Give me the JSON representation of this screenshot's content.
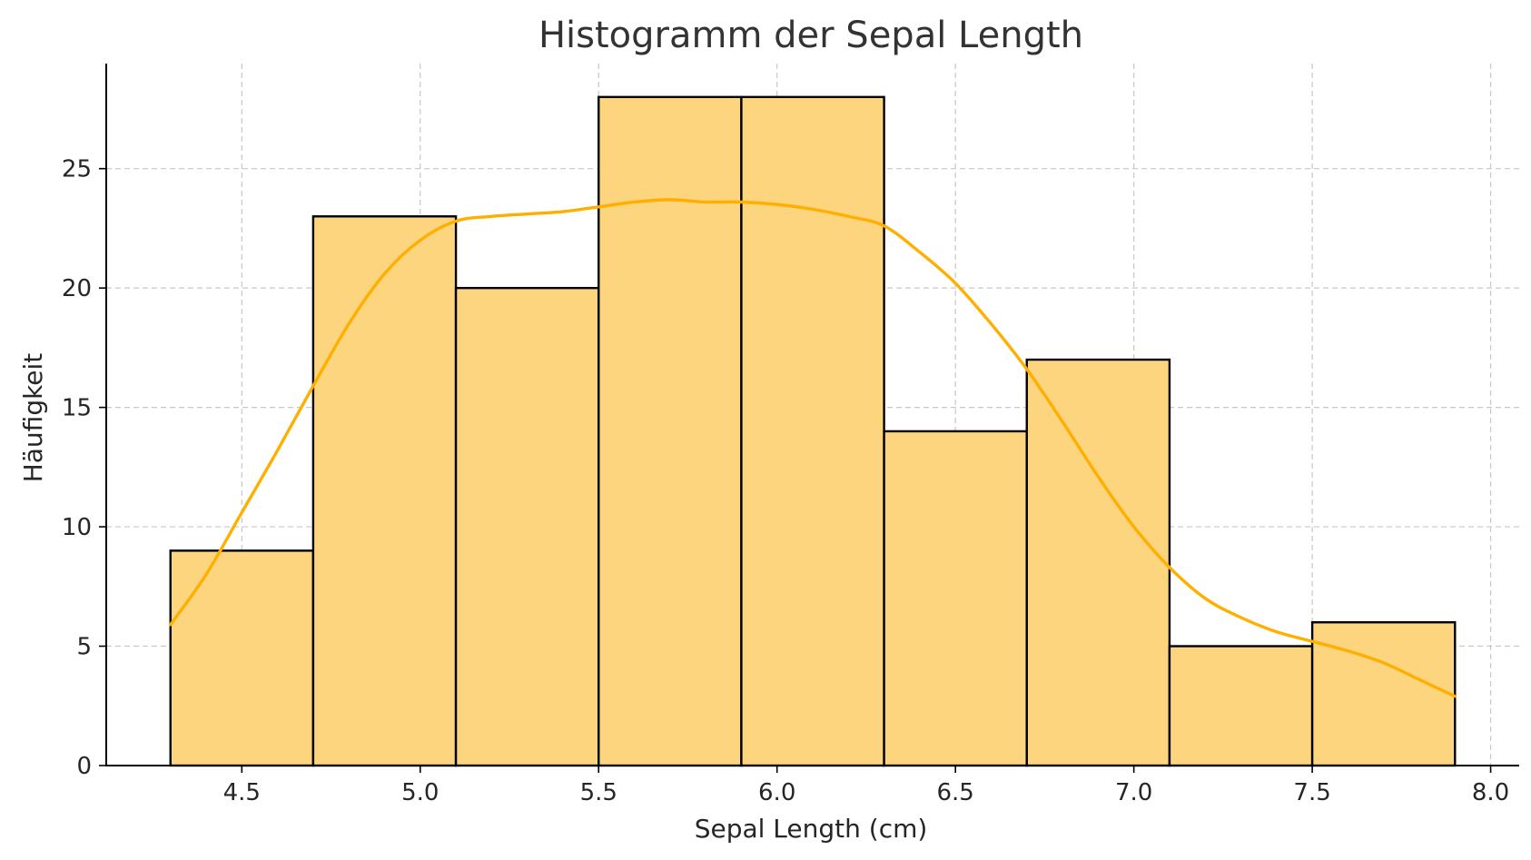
{
  "chart_data": {
    "type": "bar",
    "subtype": "histogram",
    "title": "Histogramm der Sepal Length",
    "xlabel": "Sepal Length (cm)",
    "ylabel": "Häufigkeit",
    "xlim": [
      4.12,
      8.08
    ],
    "ylim": [
      0,
      29.4
    ],
    "xticks": [
      4.5,
      5.0,
      5.5,
      6.0,
      6.5,
      7.0,
      7.5,
      8.0
    ],
    "xtick_labels": [
      "4.5",
      "5.0",
      "5.5",
      "6.0",
      "6.5",
      "7.0",
      "7.5",
      "8.0"
    ],
    "yticks": [
      0,
      5,
      10,
      15,
      20,
      25
    ],
    "ytick_labels": [
      "0",
      "5",
      "10",
      "15",
      "20",
      "25"
    ],
    "bins": [
      {
        "x0": 4.3,
        "x1": 4.7,
        "count": 9
      },
      {
        "x0": 4.7,
        "x1": 5.1,
        "count": 23
      },
      {
        "x0": 5.1,
        "x1": 5.5,
        "count": 20
      },
      {
        "x0": 5.5,
        "x1": 5.9,
        "count": 28
      },
      {
        "x0": 5.9,
        "x1": 6.3,
        "count": 28
      },
      {
        "x0": 6.3,
        "x1": 6.7,
        "count": 14
      },
      {
        "x0": 6.7,
        "x1": 7.1,
        "count": 17
      },
      {
        "x0": 7.1,
        "x1": 7.5,
        "count": 5
      },
      {
        "x0": 7.5,
        "x1": 7.9,
        "count": 6
      }
    ],
    "kde": {
      "x": [
        4.3,
        4.4,
        4.5,
        4.6,
        4.7,
        4.8,
        4.9,
        5.0,
        5.1,
        5.2,
        5.3,
        5.4,
        5.5,
        5.6,
        5.7,
        5.8,
        5.9,
        6.0,
        6.1,
        6.2,
        6.3,
        6.4,
        6.5,
        6.6,
        6.7,
        6.8,
        6.9,
        7.0,
        7.1,
        7.2,
        7.3,
        7.4,
        7.5,
        7.6,
        7.7,
        7.8,
        7.9
      ],
      "y": [
        5.9,
        8.0,
        10.6,
        13.2,
        15.9,
        18.5,
        20.6,
        22.0,
        22.8,
        23.0,
        23.1,
        23.2,
        23.4,
        23.6,
        23.7,
        23.6,
        23.6,
        23.5,
        23.3,
        23.0,
        22.6,
        21.5,
        20.2,
        18.5,
        16.6,
        14.4,
        12.1,
        10.0,
        8.3,
        7.0,
        6.2,
        5.6,
        5.2,
        4.8,
        4.3,
        3.6,
        2.9
      ]
    },
    "grid": true,
    "colors": {
      "bar_fill": "#fdd57f",
      "bar_edge": "#000000",
      "kde_line": "#ffaf00",
      "grid": "#c8c8c8"
    }
  }
}
